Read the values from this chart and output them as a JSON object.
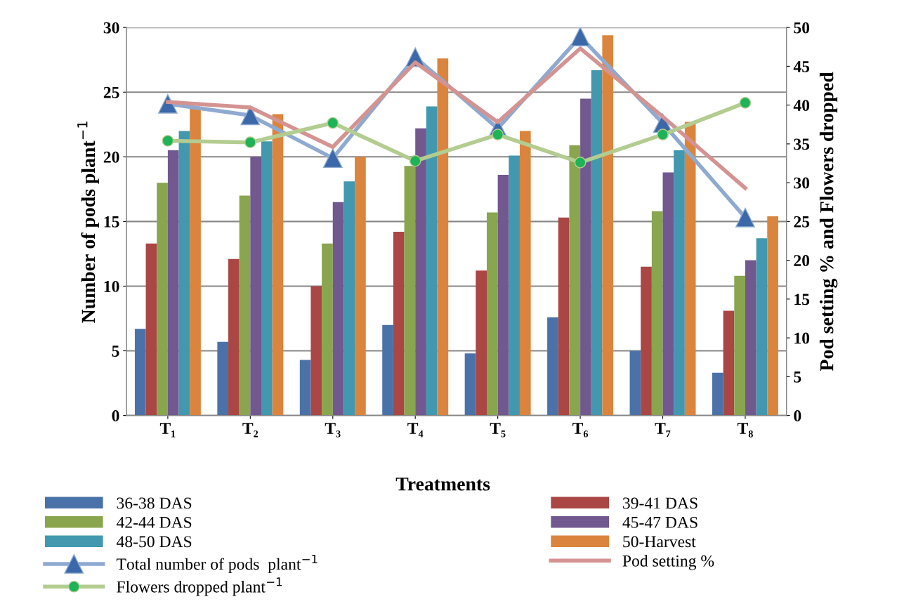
{
  "chart_data": {
    "type": "bar",
    "xlabel": "Treatments",
    "ylabel": "Number of pods plant$^{−1}$",
    "y2label": "Pod setting % and Flowers dropped",
    "categories": [
      "T₁",
      "T₂",
      "T₃",
      "T₄",
      "T₅",
      "T₆",
      "T₇",
      "T₈"
    ],
    "series": [
      {
        "name": "36-38 DAS",
        "color": "#4a72a8",
        "values": [
          6.7,
          5.7,
          4.3,
          7.0,
          4.8,
          7.6,
          5.0,
          3.3
        ]
      },
      {
        "name": "39-41 DAS",
        "color": "#aa4644",
        "values": [
          13.3,
          12.1,
          10.0,
          14.2,
          11.2,
          15.3,
          11.5,
          8.1
        ]
      },
      {
        "name": "42-44 DAS",
        "color": "#89a54e",
        "values": [
          18.0,
          17.0,
          13.3,
          19.3,
          15.7,
          20.9,
          15.8,
          10.8
        ]
      },
      {
        "name": "45-47 DAS",
        "color": "#71588f",
        "values": [
          20.5,
          20.0,
          16.5,
          22.2,
          18.6,
          24.5,
          18.8,
          12.0
        ]
      },
      {
        "name": "48-50 DAS",
        "color": "#4198af",
        "values": [
          22.0,
          21.2,
          18.1,
          23.9,
          20.1,
          26.7,
          20.5,
          13.7
        ]
      },
      {
        "name": "50-Harvest",
        "color": "#db843d",
        "values": [
          23.8,
          23.3,
          20.0,
          27.6,
          22.0,
          29.4,
          22.7,
          15.4
        ]
      },
      {
        "name": "Total number of pods  plant$^{−1}$",
        "type": "line",
        "marker": "triangle",
        "color": "#8faad0",
        "values": [
          24.1,
          23.2,
          19.9,
          27.7,
          22.2,
          29.3,
          22.6,
          15.3
        ]
      },
      {
        "name": "Pod setting %",
        "type": "line",
        "marker": "none",
        "axis": "y2",
        "color": "#d49391",
        "values": [
          40.4,
          39.7,
          34.6,
          45.5,
          37.8,
          47.3,
          38.5,
          29.3
        ]
      },
      {
        "name": "Flowers dropped plant$^{−1}$",
        "type": "line",
        "marker": "circle",
        "axis": "y2",
        "color": "#b3cc90",
        "values": [
          35.4,
          35.2,
          37.7,
          32.8,
          36.2,
          32.6,
          36.2,
          40.3
        ]
      }
    ],
    "ylim": [
      0,
      30
    ],
    "yticks": [
      0,
      5,
      10,
      15,
      20,
      25,
      30
    ],
    "y2lim": [
      0,
      50
    ],
    "y2ticks": [
      0,
      5,
      10,
      15,
      20,
      25,
      30,
      35,
      40,
      45,
      50
    ],
    "grid": "y",
    "legend": "bottom"
  }
}
